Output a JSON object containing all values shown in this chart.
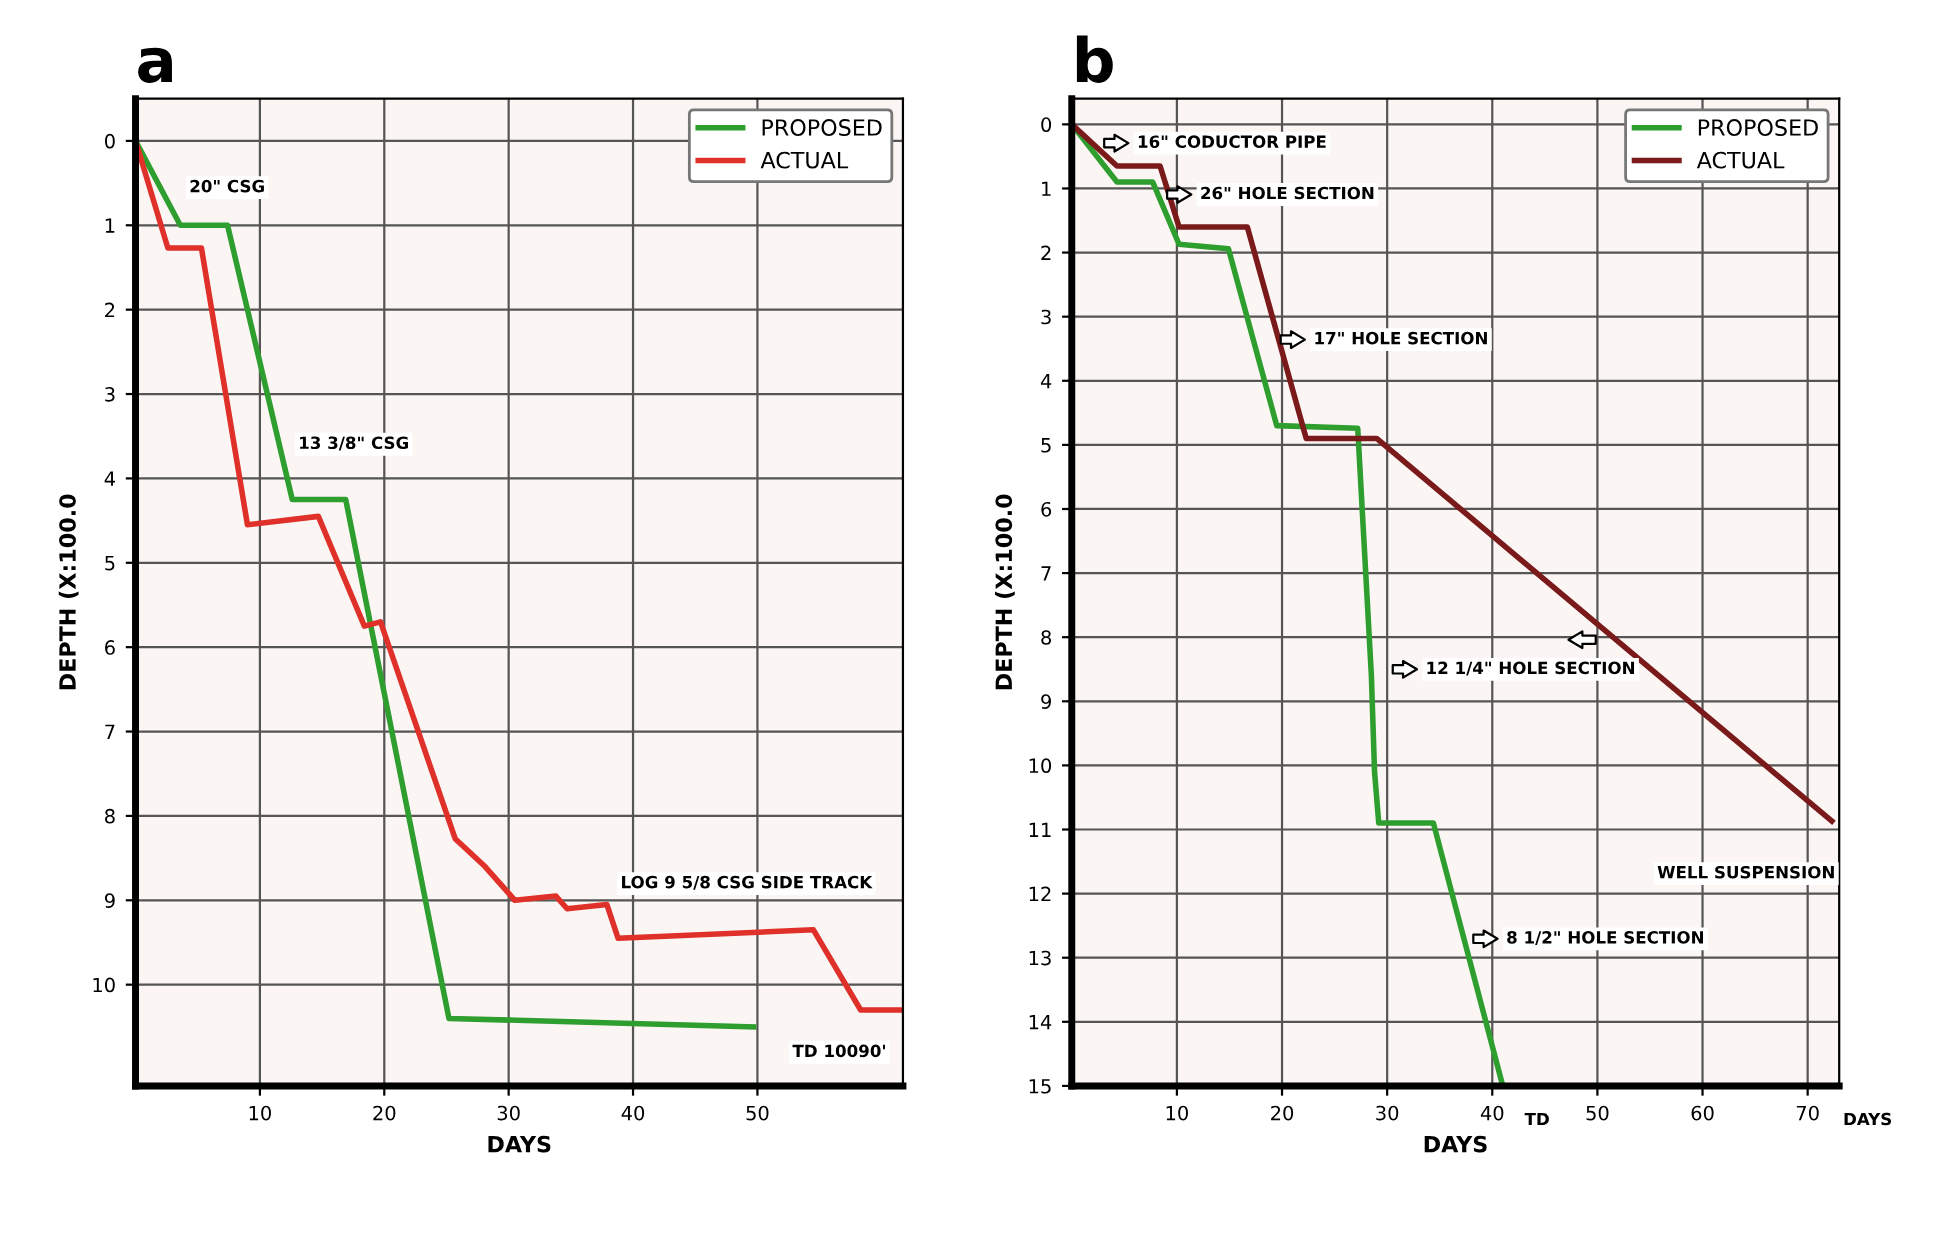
{
  "chart_data": [
    {
      "type": "line",
      "title": "a",
      "xlabel": "DAYS",
      "ylabel": "DEPTH (X:100.0",
      "xlim": [
        0,
        61.7
      ],
      "ylim": [
        11.2,
        -0.5
      ],
      "xticks": [
        10,
        20,
        30,
        40,
        50
      ],
      "yticks": [
        0,
        1,
        2,
        3,
        4,
        5,
        6,
        7,
        8,
        9,
        10
      ],
      "grid": true,
      "legend": "upper right",
      "line_style": "solid",
      "marker": "none",
      "series": [
        {
          "name": "PROPOSED",
          "color": "#2e9e2e",
          "x": [
            0,
            3.6,
            7.4,
            12.6,
            16.9,
            25.2,
            49.7
          ],
          "values": [
            0,
            1,
            1,
            4.25,
            4.25,
            10.4,
            10.5
          ]
        },
        {
          "name": "ACTUAL",
          "color": "#e0302a",
          "x": [
            0,
            2.6,
            5.3,
            9,
            14.7,
            18.4,
            19.7,
            25.7,
            28.1,
            30.5,
            33.8,
            34.7,
            37.9,
            38.8,
            54.5,
            58.3,
            61.4
          ],
          "values": [
            0,
            1.27,
            1.27,
            4.55,
            4.45,
            5.75,
            5.7,
            8.27,
            8.6,
            9.0,
            8.95,
            9.1,
            9.05,
            9.45,
            9.35,
            10.3,
            10.3
          ]
        }
      ],
      "annotations": [
        "20\" CSG",
        "13 3/8\" CSG",
        "LOG 9 5/8 CSG SIDE TRACK",
        "TD 10090'"
      ]
    },
    {
      "type": "line",
      "title": "b",
      "xlabel": "DAYS",
      "ylabel": "DEPTH (X:100.0",
      "xlim": [
        0,
        73
      ],
      "ylim": [
        15,
        -0.4
      ],
      "xticks": [
        10,
        20,
        30,
        40,
        50,
        60,
        70
      ],
      "yticks": [
        0,
        1,
        2,
        3,
        4,
        5,
        6,
        7,
        8,
        9,
        10,
        11,
        12,
        13,
        14,
        15
      ],
      "grid": true,
      "legend": "upper right",
      "line_style": "solid",
      "marker": "none",
      "series": [
        {
          "name": "PROPOSED",
          "color": "#2e9e2e",
          "x": [
            0,
            4.3,
            7.7,
            10.2,
            14.9,
            19.5,
            27.2,
            28.5,
            28.8,
            29.2,
            34.4,
            41
          ],
          "values": [
            0,
            0.9,
            0.9,
            1.87,
            1.94,
            4.7,
            4.74,
            8.6,
            10.1,
            10.9,
            10.9,
            15
          ]
        },
        {
          "name": "ACTUAL",
          "color": "#7a1a1a",
          "x": [
            0,
            4.3,
            8.4,
            10.2,
            16.7,
            22.3,
            29,
            72.3
          ],
          "values": [
            0,
            0.65,
            0.65,
            1.6,
            1.6,
            4.9,
            4.9,
            10.87
          ]
        }
      ],
      "annotations": [
        "16\" CODUCTOR PIPE",
        "26\" HOLE SECTION",
        "17\" HOLE SECTION",
        "12 1/4\" HOLE SECTION",
        "8 1/2\" HOLE SECTION",
        "WELL SUSPENSION",
        "TD",
        "DAYS"
      ]
    }
  ]
}
